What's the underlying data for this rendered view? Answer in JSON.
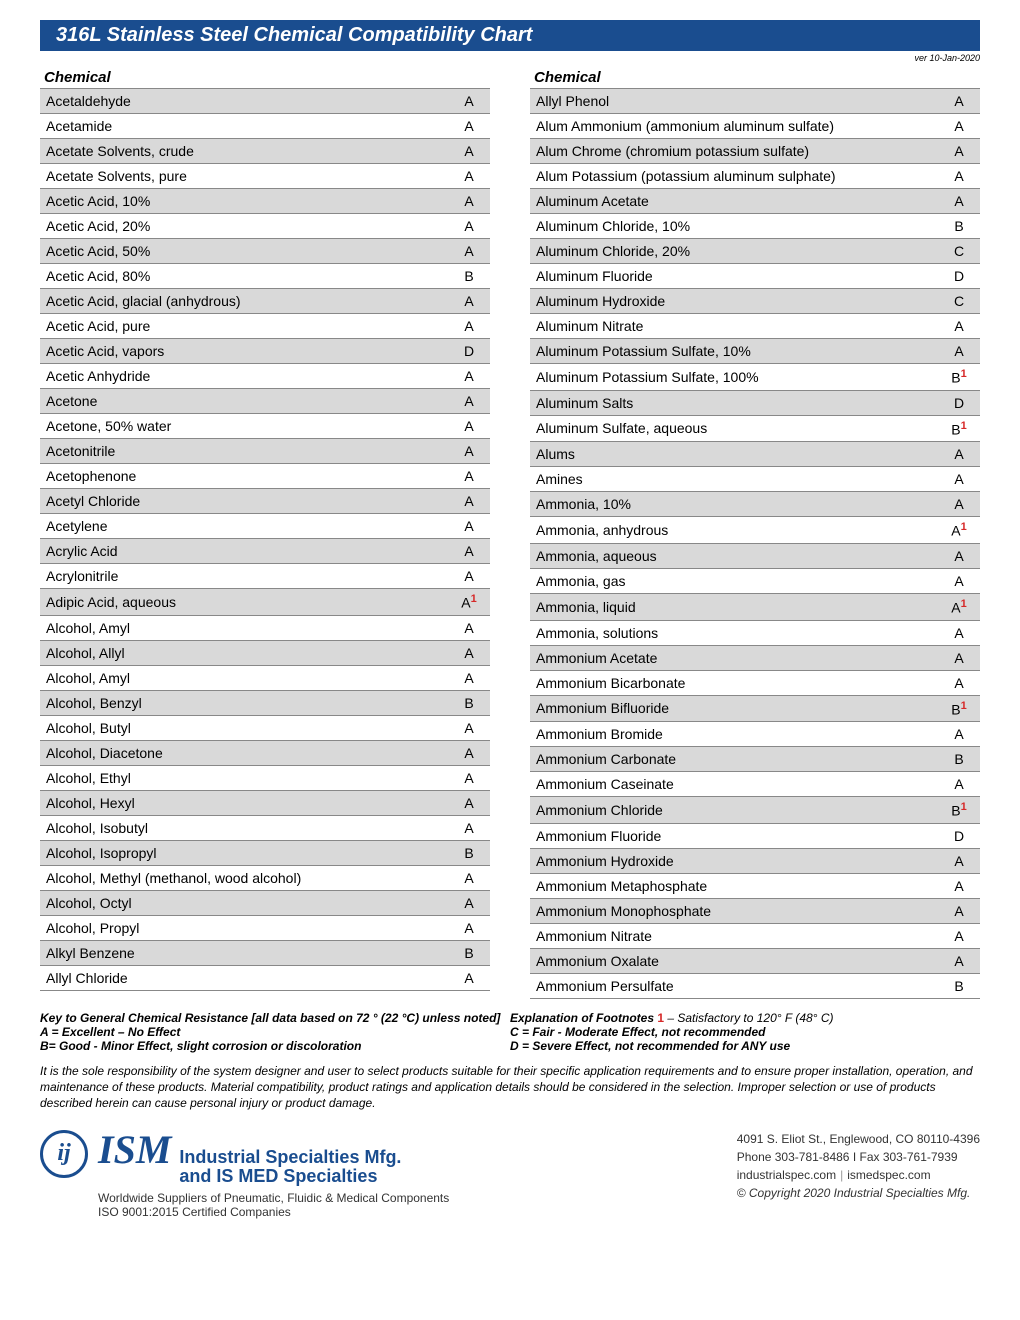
{
  "title": "316L Stainless Steel Chemical Compatibility Chart",
  "version": "ver 10-Jan-2020",
  "column_header": "Chemical",
  "left_rows": [
    {
      "name": "Acetaldehyde",
      "rating": "A",
      "fn": ""
    },
    {
      "name": "Acetamide",
      "rating": "A",
      "fn": ""
    },
    {
      "name": "Acetate Solvents, crude",
      "rating": "A",
      "fn": ""
    },
    {
      "name": "Acetate Solvents, pure",
      "rating": "A",
      "fn": ""
    },
    {
      "name": "Acetic Acid, 10%",
      "rating": "A",
      "fn": ""
    },
    {
      "name": "Acetic Acid, 20%",
      "rating": "A",
      "fn": ""
    },
    {
      "name": "Acetic Acid, 50%",
      "rating": "A",
      "fn": ""
    },
    {
      "name": "Acetic Acid, 80%",
      "rating": "B",
      "fn": ""
    },
    {
      "name": "Acetic Acid, glacial (anhydrous)",
      "rating": "A",
      "fn": ""
    },
    {
      "name": "Acetic Acid, pure",
      "rating": "A",
      "fn": ""
    },
    {
      "name": "Acetic Acid, vapors",
      "rating": "D",
      "fn": ""
    },
    {
      "name": "Acetic Anhydride",
      "rating": "A",
      "fn": ""
    },
    {
      "name": "Acetone",
      "rating": "A",
      "fn": ""
    },
    {
      "name": "Acetone, 50% water",
      "rating": "A",
      "fn": ""
    },
    {
      "name": "Acetonitrile",
      "rating": "A",
      "fn": ""
    },
    {
      "name": "Acetophenone",
      "rating": "A",
      "fn": ""
    },
    {
      "name": "Acetyl Chloride",
      "rating": "A",
      "fn": ""
    },
    {
      "name": "Acetylene",
      "rating": "A",
      "fn": ""
    },
    {
      "name": "Acrylic Acid",
      "rating": "A",
      "fn": ""
    },
    {
      "name": "Acrylonitrile",
      "rating": "A",
      "fn": ""
    },
    {
      "name": "Adipic Acid, aqueous",
      "rating": "A",
      "fn": "1"
    },
    {
      "name": "Alcohol, Amyl",
      "rating": "A",
      "fn": ""
    },
    {
      "name": "Alcohol, Allyl",
      "rating": "A",
      "fn": ""
    },
    {
      "name": "Alcohol, Amyl",
      "rating": "A",
      "fn": ""
    },
    {
      "name": "Alcohol, Benzyl",
      "rating": "B",
      "fn": ""
    },
    {
      "name": "Alcohol, Butyl",
      "rating": "A",
      "fn": ""
    },
    {
      "name": "Alcohol, Diacetone",
      "rating": "A",
      "fn": ""
    },
    {
      "name": "Alcohol, Ethyl",
      "rating": "A",
      "fn": ""
    },
    {
      "name": "Alcohol, Hexyl",
      "rating": "A",
      "fn": ""
    },
    {
      "name": "Alcohol, Isobutyl",
      "rating": "A",
      "fn": ""
    },
    {
      "name": "Alcohol, Isopropyl",
      "rating": "B",
      "fn": ""
    },
    {
      "name": "Alcohol, Methyl (methanol, wood alcohol)",
      "rating": "A",
      "fn": ""
    },
    {
      "name": "Alcohol, Octyl",
      "rating": "A",
      "fn": ""
    },
    {
      "name": "Alcohol, Propyl",
      "rating": "A",
      "fn": ""
    },
    {
      "name": "Alkyl Benzene",
      "rating": "B",
      "fn": ""
    },
    {
      "name": "Allyl Chloride",
      "rating": "A",
      "fn": ""
    }
  ],
  "right_rows": [
    {
      "name": "Allyl Phenol",
      "rating": "A",
      "fn": ""
    },
    {
      "name": "Alum Ammonium (ammonium aluminum sulfate)",
      "rating": "A",
      "fn": ""
    },
    {
      "name": "Alum Chrome (chromium potassium sulfate)",
      "rating": "A",
      "fn": ""
    },
    {
      "name": "Alum Potassium (potassium aluminum sulphate)",
      "rating": "A",
      "fn": ""
    },
    {
      "name": "Aluminum Acetate",
      "rating": "A",
      "fn": ""
    },
    {
      "name": "Aluminum Chloride, 10%",
      "rating": "B",
      "fn": ""
    },
    {
      "name": "Aluminum Chloride, 20%",
      "rating": "C",
      "fn": ""
    },
    {
      "name": "Aluminum Fluoride",
      "rating": "D",
      "fn": ""
    },
    {
      "name": "Aluminum Hydroxide",
      "rating": "C",
      "fn": ""
    },
    {
      "name": "Aluminum Nitrate",
      "rating": "A",
      "fn": ""
    },
    {
      "name": "Aluminum Potassium Sulfate, 10%",
      "rating": "A",
      "fn": ""
    },
    {
      "name": "Aluminum Potassium Sulfate, 100%",
      "rating": "B",
      "fn": "1"
    },
    {
      "name": "Aluminum Salts",
      "rating": "D",
      "fn": ""
    },
    {
      "name": "Aluminum Sulfate, aqueous",
      "rating": "B",
      "fn": "1"
    },
    {
      "name": "Alums",
      "rating": "A",
      "fn": ""
    },
    {
      "name": "Amines",
      "rating": "A",
      "fn": ""
    },
    {
      "name": "Ammonia, 10%",
      "rating": "A",
      "fn": ""
    },
    {
      "name": "Ammonia, anhydrous",
      "rating": "A",
      "fn": "1"
    },
    {
      "name": "Ammonia, aqueous",
      "rating": "A",
      "fn": ""
    },
    {
      "name": "Ammonia, gas",
      "rating": "A",
      "fn": ""
    },
    {
      "name": "Ammonia, liquid",
      "rating": "A",
      "fn": "1"
    },
    {
      "name": "Ammonia, solutions",
      "rating": "A",
      "fn": ""
    },
    {
      "name": "Ammonium Acetate",
      "rating": "A",
      "fn": ""
    },
    {
      "name": "Ammonium Bicarbonate",
      "rating": "A",
      "fn": ""
    },
    {
      "name": "Ammonium Bifluoride",
      "rating": "B",
      "fn": "1"
    },
    {
      "name": "Ammonium Bromide",
      "rating": "A",
      "fn": ""
    },
    {
      "name": "Ammonium Carbonate",
      "rating": "B",
      "fn": ""
    },
    {
      "name": "Ammonium Caseinate",
      "rating": "A",
      "fn": ""
    },
    {
      "name": "Ammonium Chloride",
      "rating": "B",
      "fn": "1"
    },
    {
      "name": "Ammonium Fluoride",
      "rating": "D",
      "fn": ""
    },
    {
      "name": "Ammonium Hydroxide",
      "rating": "A",
      "fn": ""
    },
    {
      "name": "Ammonium Metaphosphate",
      "rating": "A",
      "fn": ""
    },
    {
      "name": "Ammonium Monophosphate",
      "rating": "A",
      "fn": ""
    },
    {
      "name": "Ammonium Nitrate",
      "rating": "A",
      "fn": ""
    },
    {
      "name": "Ammonium Oxalate",
      "rating": "A",
      "fn": ""
    },
    {
      "name": "Ammonium Persulfate",
      "rating": "B",
      "fn": ""
    }
  ],
  "key": {
    "heading": "Key to General Chemical Resistance [all data based on 72 ° (22 °C) unless noted]",
    "explanation_label": "Explanation of Footnotes",
    "footnote_num": "1",
    "footnote_text": " – Satisfactory to 120° F (48° C)",
    "a": "A = Excellent – No Effect",
    "b": "B= Good - Minor Effect, slight corrosion or discoloration",
    "c": "C = Fair - Moderate Effect, not recommended",
    "d": "D = Severe Effect, not recommended for ANY use"
  },
  "disclaimer": "It is the sole responsibility of the system designer and user to select products suitable for their specific application requirements and to ensure proper installation, operation, and maintenance of these products. Material compatibility, product ratings and application details should be considered in the selection. Improper selection or use of products described herein can cause personal injury or product damage.",
  "footer": {
    "logo_letter": "ij",
    "ism": "ISM",
    "company_line1": "Industrial Specialties Mfg.",
    "company_line2": "and IS MED Specialties",
    "tagline": "Worldwide Suppliers of Pneumatic, Fluidic & Medical Components",
    "iso": "ISO 9001:2015 Certified Companies",
    "address": "4091 S. Eliot St., Englewood, CO 80110-4396",
    "phone": "Phone 303-781-8486 I Fax 303-761-7939",
    "web1": "industrialspec.com",
    "web2": "ismedspec.com",
    "copyright": "© Copyright 2020 Industrial Specialties Mfg."
  }
}
